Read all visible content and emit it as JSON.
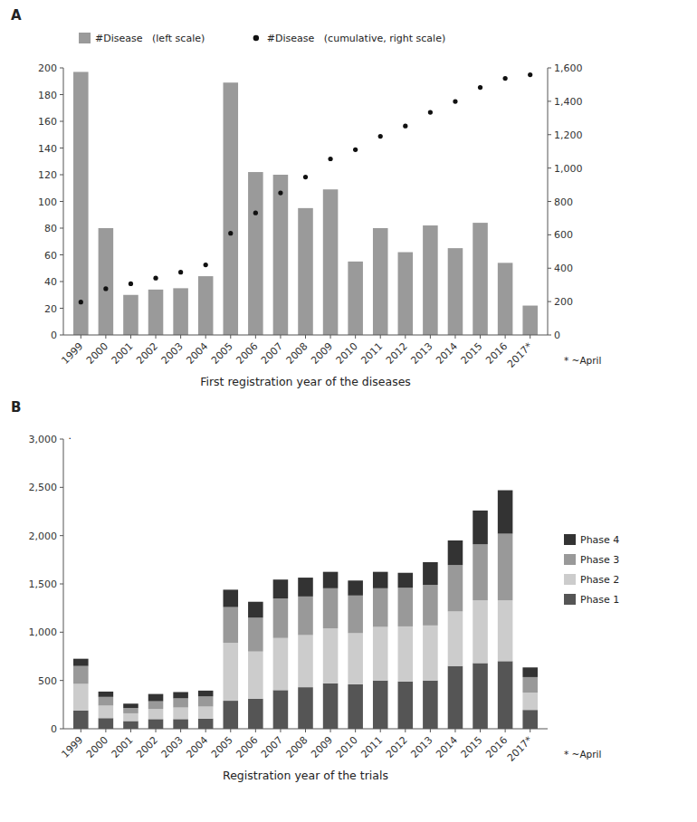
{
  "chart_data": [
    {
      "type": "bar",
      "title": "A",
      "x_label": "First registration year of the diseases",
      "categories": [
        "1999",
        "2000",
        "2001",
        "2002",
        "2003",
        "2004",
        "2005",
        "2006",
        "2007",
        "2008",
        "2009",
        "2010",
        "2011",
        "2012",
        "2013",
        "2014",
        "2015",
        "2016",
        "2017*"
      ],
      "series": [
        {
          "name": "#Disease   (left scale)",
          "type": "bar",
          "color": "#9a9a9a",
          "values": [
            197,
            80,
            30,
            34,
            35,
            44,
            189,
            122,
            120,
            95,
            109,
            55,
            80,
            62,
            82,
            65,
            84,
            54,
            22
          ]
        },
        {
          "name": "#Disease   (cumulative, right scale)",
          "type": "scatter",
          "marker": "circle",
          "color": "#111111",
          "axis": "y2",
          "values": [
            197,
            277,
            307,
            341,
            376,
            420,
            609,
            731,
            851,
            946,
            1055,
            1110,
            1190,
            1252,
            1334,
            1399,
            1483,
            1537,
            1559
          ]
        }
      ],
      "ylim": [
        0,
        200
      ],
      "yticks": [
        0,
        20,
        40,
        60,
        80,
        100,
        120,
        140,
        160,
        180,
        200
      ],
      "y2lim": [
        0,
        1600
      ],
      "y2ticks": [
        0,
        200,
        400,
        600,
        800,
        {
          "value": 1000,
          "label": "1,000"
        },
        {
          "value": 1200,
          "label": "1,200"
        },
        {
          "value": 1400,
          "label": "1,400"
        },
        {
          "value": 1600,
          "label": "1,600"
        }
      ],
      "legend": "top",
      "annotations": [
        "* ~April"
      ]
    },
    {
      "type": "bar",
      "title": "B",
      "x_label": "Registration year of the trials",
      "categories": [
        "1999",
        "2000",
        "2001",
        "2002",
        "2003",
        "2004",
        "2005",
        "2006",
        "2007",
        "2008",
        "2009",
        "2010",
        "2011",
        "2012",
        "2013",
        "2014",
        "2015",
        "2016",
        "2017*"
      ],
      "stacked": true,
      "series": [
        {
          "name": "Phase 1",
          "color": "#555555",
          "values": [
            190,
            110,
            80,
            100,
            100,
            105,
            290,
            310,
            400,
            430,
            470,
            460,
            500,
            490,
            500,
            650,
            680,
            700,
            195
          ]
        },
        {
          "name": "Phase 2",
          "color": "#cccccc",
          "values": [
            275,
            130,
            80,
            105,
            120,
            125,
            600,
            490,
            540,
            540,
            570,
            530,
            555,
            570,
            570,
            565,
            650,
            630,
            180
          ]
        },
        {
          "name": "Phase 3",
          "color": "#999999",
          "values": [
            185,
            90,
            55,
            80,
            95,
            105,
            370,
            350,
            410,
            400,
            415,
            390,
            400,
            400,
            420,
            480,
            580,
            690,
            160
          ]
        },
        {
          "name": "Phase 4",
          "color": "#333333",
          "values": [
            75,
            55,
            45,
            75,
            65,
            60,
            180,
            165,
            195,
            195,
            170,
            155,
            170,
            155,
            235,
            255,
            350,
            450,
            100
          ]
        }
      ],
      "ylim": [
        0,
        3000
      ],
      "yticks": [
        0,
        500,
        {
          "value": 1000,
          "label": "1,000"
        },
        {
          "value": 1500,
          "label": "1,500"
        },
        {
          "value": 2000,
          "label": "2,000"
        },
        {
          "value": 2500,
          "label": "2,500"
        },
        {
          "value": 3000,
          "label": "3,000"
        }
      ],
      "legend": "right",
      "annotations": [
        "* ~April",
        "."
      ]
    }
  ]
}
